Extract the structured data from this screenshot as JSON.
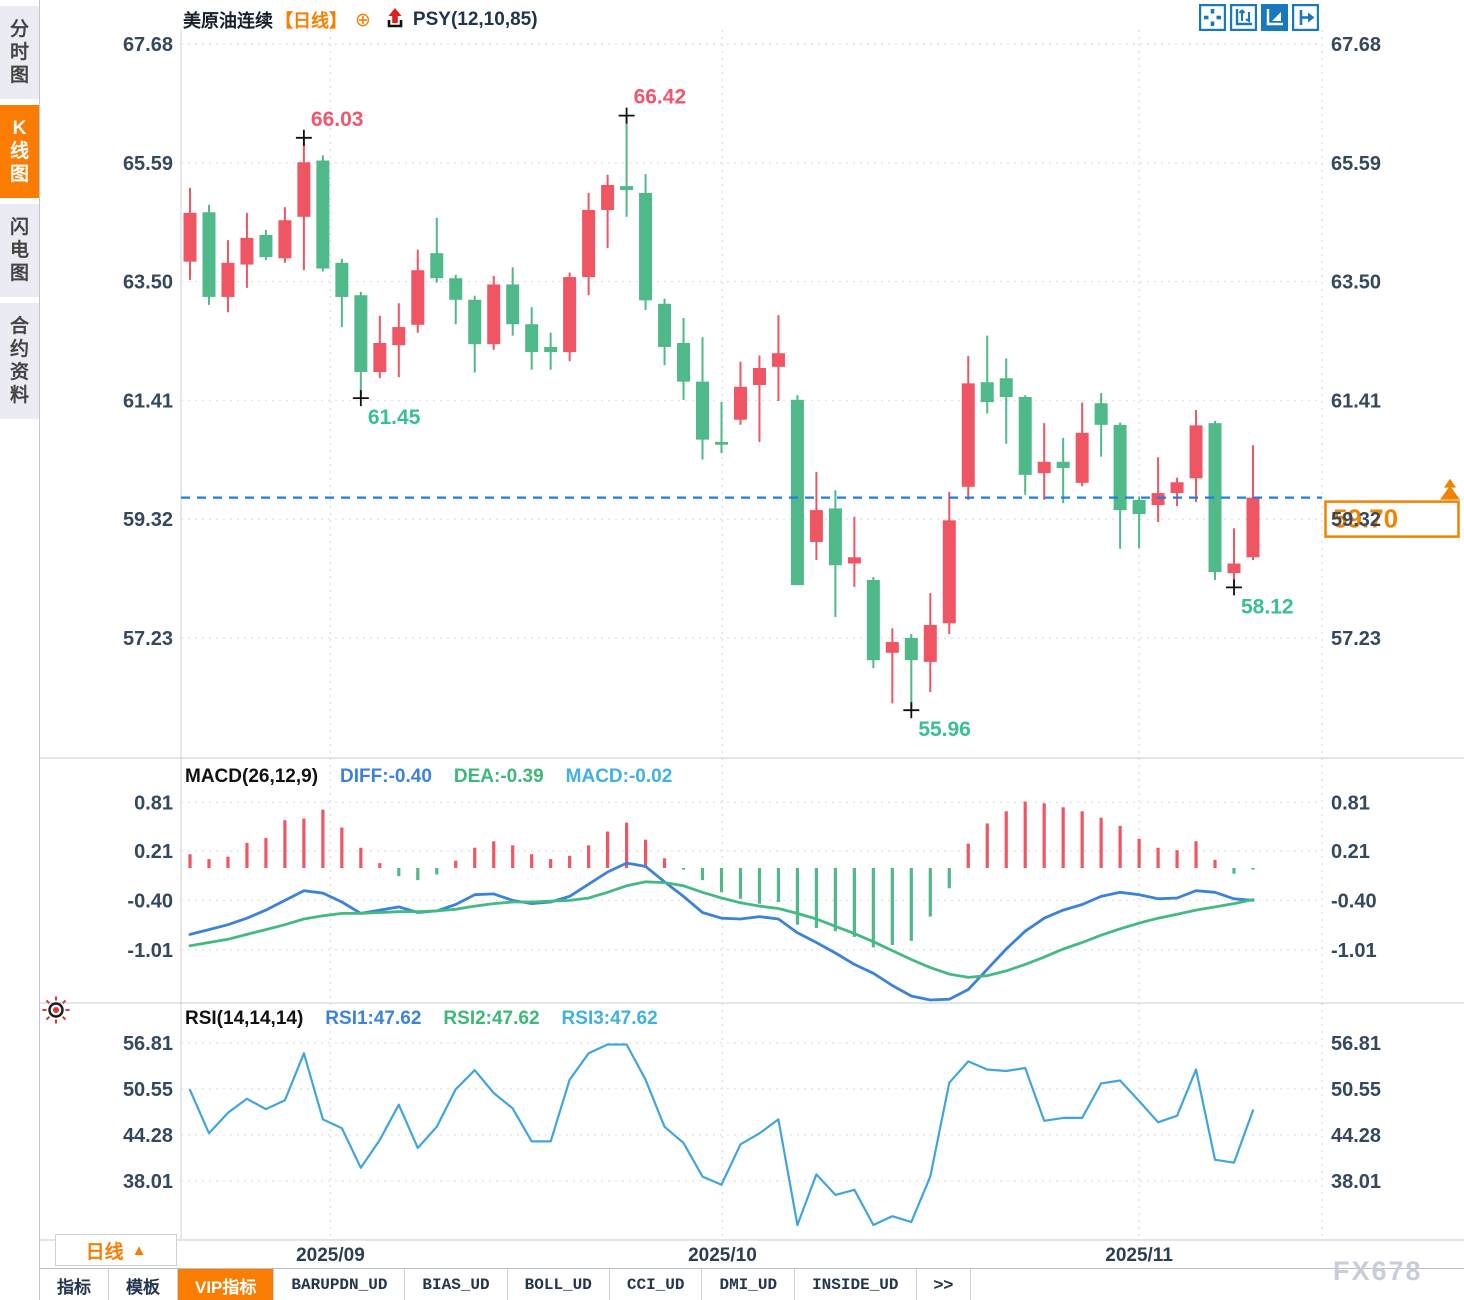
{
  "app": {
    "sidebar": {
      "items": [
        {
          "label": "分时图",
          "active": false
        },
        {
          "label": "K线图",
          "active": true
        },
        {
          "label": "闪电图",
          "active": false
        },
        {
          "label": "合约资料",
          "active": false
        }
      ]
    },
    "header": {
      "symbol": "美原油连续",
      "period_tag": "【日线】",
      "overlay_icon": "⊕",
      "indicator": "PSY(12,10,85)"
    },
    "toolbar_icons": [
      {
        "name": "pan-crosshair-icon",
        "active": false
      },
      {
        "name": "axis-zoom-icon",
        "active": false
      },
      {
        "name": "auto-scale-icon",
        "active": true
      },
      {
        "name": "shift-right-icon",
        "active": false
      }
    ],
    "bottom": {
      "period_label": "日线",
      "period_arrow": "▲",
      "tabs": [
        {
          "label": "指标",
          "active": false
        },
        {
          "label": "模板",
          "active": false
        },
        {
          "label": "VIP指标",
          "active": true
        },
        {
          "label": "BARUPDN_UD",
          "active": false
        },
        {
          "label": "BIAS_UD",
          "active": false
        },
        {
          "label": "BOLL_UD",
          "active": false
        },
        {
          "label": "CCI_UD",
          "active": false
        },
        {
          "label": "DMI_UD",
          "active": false
        },
        {
          "label": "INSIDE_UD",
          "active": false
        },
        {
          "label": ">>",
          "active": false
        }
      ]
    },
    "watermark": "FX678",
    "colors": {
      "up": "#f05564",
      "down": "#4fb98a",
      "annotation_high": "#f2566c",
      "annotation_low": "#38bf92",
      "diff_line": "#3b82d9",
      "dea_line": "#44b982",
      "rsi_line": "#41a5dd",
      "price_line": "#1e7fe0",
      "price_box": "#f08300",
      "accent_orange": "#f97d00",
      "icon_blue": "#1878be",
      "axis_text": "#35485e",
      "grid": "#e4e4e8"
    }
  },
  "chart_data": [
    {
      "type": "candlestick",
      "name": "main-price-panel",
      "y_ticks": [
        "67.68",
        "65.59",
        "63.50",
        "61.41",
        "59.32",
        "57.23"
      ],
      "x_labels": [
        {
          "label": "2025/09",
          "index": 7.4
        },
        {
          "label": "2025/10",
          "index": 28.05
        },
        {
          "label": "2025/11",
          "index": 50.0
        }
      ],
      "current_price": "59.70",
      "annotations": [
        {
          "index": 6,
          "text": "66.03",
          "at": "high"
        },
        {
          "index": 23,
          "text": "66.42",
          "at": "high"
        },
        {
          "index": 9,
          "text": "61.45",
          "at": "low"
        },
        {
          "index": 38,
          "text": "55.96",
          "at": "low"
        },
        {
          "index": 55,
          "text": "58.12",
          "at": "low"
        }
      ],
      "candles": [
        [
          63.85,
          65.15,
          63.53,
          64.71
        ],
        [
          64.72,
          64.85,
          63.09,
          63.23
        ],
        [
          63.23,
          64.23,
          62.96,
          63.83
        ],
        [
          63.8,
          64.71,
          63.39,
          64.27
        ],
        [
          64.32,
          64.41,
          63.88,
          63.93
        ],
        [
          63.91,
          64.81,
          63.83,
          64.58
        ],
        [
          64.64,
          66.03,
          63.7,
          65.6
        ],
        [
          65.63,
          65.72,
          63.68,
          63.73
        ],
        [
          63.83,
          63.9,
          62.7,
          63.23
        ],
        [
          63.26,
          63.32,
          61.45,
          61.91
        ],
        [
          61.91,
          62.9,
          61.8,
          62.42
        ],
        [
          62.38,
          63.12,
          61.82,
          62.7
        ],
        [
          62.74,
          64.06,
          62.6,
          63.7
        ],
        [
          64.0,
          64.62,
          63.48,
          63.56
        ],
        [
          63.56,
          63.62,
          62.75,
          63.18
        ],
        [
          63.18,
          63.25,
          61.9,
          62.4
        ],
        [
          62.4,
          63.6,
          62.3,
          63.45
        ],
        [
          63.45,
          63.75,
          62.55,
          62.75
        ],
        [
          62.75,
          63.05,
          61.95,
          62.26
        ],
        [
          62.35,
          62.6,
          61.95,
          62.26
        ],
        [
          62.26,
          63.66,
          62.1,
          63.58
        ],
        [
          63.58,
          65.06,
          63.26,
          64.76
        ],
        [
          64.76,
          65.38,
          64.09,
          65.2
        ],
        [
          65.18,
          66.42,
          64.64,
          65.11
        ],
        [
          65.06,
          65.39,
          63.0,
          63.17
        ],
        [
          63.11,
          63.2,
          62.03,
          62.35
        ],
        [
          62.42,
          62.86,
          61.42,
          61.74
        ],
        [
          61.74,
          62.52,
          60.37,
          60.72
        ],
        [
          60.68,
          61.38,
          60.48,
          60.63
        ],
        [
          61.07,
          62.09,
          60.98,
          61.65
        ],
        [
          61.68,
          62.2,
          60.68,
          61.98
        ],
        [
          62.0,
          62.91,
          61.4,
          62.24
        ],
        [
          61.42,
          61.5,
          58.16,
          58.16
        ],
        [
          58.92,
          60.15,
          58.6,
          59.48
        ],
        [
          59.51,
          59.83,
          57.6,
          58.51
        ],
        [
          58.54,
          59.36,
          58.13,
          58.65
        ],
        [
          58.25,
          58.3,
          56.7,
          56.84
        ],
        [
          56.97,
          57.4,
          56.08,
          57.16
        ],
        [
          57.23,
          57.3,
          55.96,
          56.84
        ],
        [
          56.81,
          58.02,
          56.28,
          57.46
        ],
        [
          57.49,
          59.8,
          57.3,
          59.3
        ],
        [
          59.89,
          62.19,
          59.66,
          61.71
        ],
        [
          61.73,
          62.55,
          61.18,
          61.38
        ],
        [
          61.8,
          62.15,
          60.65,
          61.47
        ],
        [
          61.47,
          61.5,
          59.75,
          60.1
        ],
        [
          60.13,
          61.01,
          59.66,
          60.33
        ],
        [
          60.33,
          60.75,
          59.6,
          60.22
        ],
        [
          59.96,
          61.37,
          59.9,
          60.84
        ],
        [
          61.36,
          61.54,
          60.42,
          60.98
        ],
        [
          60.98,
          61.02,
          58.8,
          59.48
        ],
        [
          59.66,
          59.72,
          58.81,
          59.41
        ],
        [
          59.57,
          60.41,
          59.27,
          59.78
        ],
        [
          59.78,
          60.05,
          59.55,
          59.97
        ],
        [
          60.04,
          61.24,
          59.62,
          60.97
        ],
        [
          61.01,
          61.05,
          58.25,
          58.39
        ],
        [
          58.37,
          59.16,
          58.12,
          58.54
        ],
        [
          58.65,
          60.62,
          58.6,
          59.7
        ]
      ]
    },
    {
      "type": "bar",
      "name": "macd-panel",
      "title_label": "MACD(26,12,9)",
      "readouts": [
        {
          "text": "DIFF:-0.40",
          "color": "#3b82d9"
        },
        {
          "text": "DEA:-0.39",
          "color": "#3cb878"
        },
        {
          "text": "MACD:-0.02",
          "color": "#41b1e3"
        }
      ],
      "y_ticks": [
        "0.81",
        "0.21",
        "-0.40",
        "-1.01"
      ],
      "histogram": [
        0.17,
        0.11,
        0.14,
        0.31,
        0.37,
        0.59,
        0.61,
        0.72,
        0.5,
        0.25,
        0.06,
        -0.1,
        -0.15,
        -0.08,
        0.09,
        0.25,
        0.33,
        0.28,
        0.17,
        0.11,
        0.15,
        0.28,
        0.45,
        0.56,
        0.35,
        0.12,
        -0.02,
        -0.15,
        -0.3,
        -0.38,
        -0.44,
        -0.42,
        -0.7,
        -0.74,
        -0.78,
        -0.85,
        -0.98,
        -0.95,
        -0.9,
        -0.6,
        -0.25,
        0.3,
        0.55,
        0.7,
        0.82,
        0.8,
        0.75,
        0.7,
        0.62,
        0.52,
        0.36,
        0.25,
        0.22,
        0.33,
        0.1,
        -0.07,
        -0.02
      ],
      "series": [
        {
          "name": "DIFF",
          "values": [
            -0.82,
            -0.76,
            -0.7,
            -0.62,
            -0.52,
            -0.4,
            -0.28,
            -0.31,
            -0.42,
            -0.56,
            -0.52,
            -0.48,
            -0.55,
            -0.53,
            -0.45,
            -0.33,
            -0.32,
            -0.4,
            -0.44,
            -0.42,
            -0.35,
            -0.2,
            -0.05,
            0.06,
            0.02,
            -0.17,
            -0.35,
            -0.55,
            -0.62,
            -0.63,
            -0.6,
            -0.63,
            -0.8,
            -0.92,
            -1.05,
            -1.19,
            -1.3,
            -1.45,
            -1.58,
            -1.63,
            -1.62,
            -1.5,
            -1.25,
            -1.0,
            -0.78,
            -0.62,
            -0.52,
            -0.45,
            -0.35,
            -0.3,
            -0.33,
            -0.38,
            -0.37,
            -0.28,
            -0.3,
            -0.38,
            -0.4
          ]
        },
        {
          "name": "DEA",
          "values": [
            -0.96,
            -0.92,
            -0.88,
            -0.82,
            -0.76,
            -0.7,
            -0.63,
            -0.59,
            -0.56,
            -0.56,
            -0.55,
            -0.54,
            -0.54,
            -0.53,
            -0.51,
            -0.47,
            -0.44,
            -0.42,
            -0.42,
            -0.41,
            -0.4,
            -0.37,
            -0.3,
            -0.22,
            -0.17,
            -0.18,
            -0.22,
            -0.3,
            -0.37,
            -0.43,
            -0.47,
            -0.5,
            -0.56,
            -0.63,
            -0.72,
            -0.81,
            -0.91,
            -1.02,
            -1.13,
            -1.23,
            -1.31,
            -1.35,
            -1.33,
            -1.27,
            -1.19,
            -1.1,
            -1.0,
            -0.92,
            -0.83,
            -0.75,
            -0.68,
            -0.62,
            -0.57,
            -0.52,
            -0.48,
            -0.44,
            -0.39
          ]
        }
      ]
    },
    {
      "type": "line",
      "name": "rsi-panel",
      "title_label": "RSI(14,14,14)",
      "readouts": [
        {
          "text": "RSI1:47.62",
          "color": "#3b82d9"
        },
        {
          "text": "RSI2:47.62",
          "color": "#3cb878"
        },
        {
          "text": "RSI3:47.62",
          "color": "#41b1e3"
        }
      ],
      "y_ticks": [
        "56.81",
        "50.55",
        "44.28",
        "38.01"
      ],
      "values": [
        50.4,
        44.5,
        47.3,
        49.2,
        47.8,
        49.0,
        55.4,
        46.4,
        45.2,
        39.8,
        43.6,
        48.4,
        42.5,
        45.4,
        50.5,
        53.1,
        50.0,
        47.9,
        43.4,
        43.4,
        51.8,
        55.4,
        56.6,
        56.6,
        51.8,
        45.4,
        43.2,
        38.6,
        37.5,
        43.0,
        44.5,
        46.4,
        32.0,
        38.9,
        36.1,
        36.8,
        32.0,
        33.2,
        32.4,
        38.6,
        51.4,
        54.3,
        53.2,
        53.0,
        53.4,
        46.2,
        46.6,
        46.6,
        51.3,
        51.7,
        48.9,
        46.0,
        46.9,
        53.2,
        40.9,
        40.5,
        47.62
      ]
    }
  ]
}
